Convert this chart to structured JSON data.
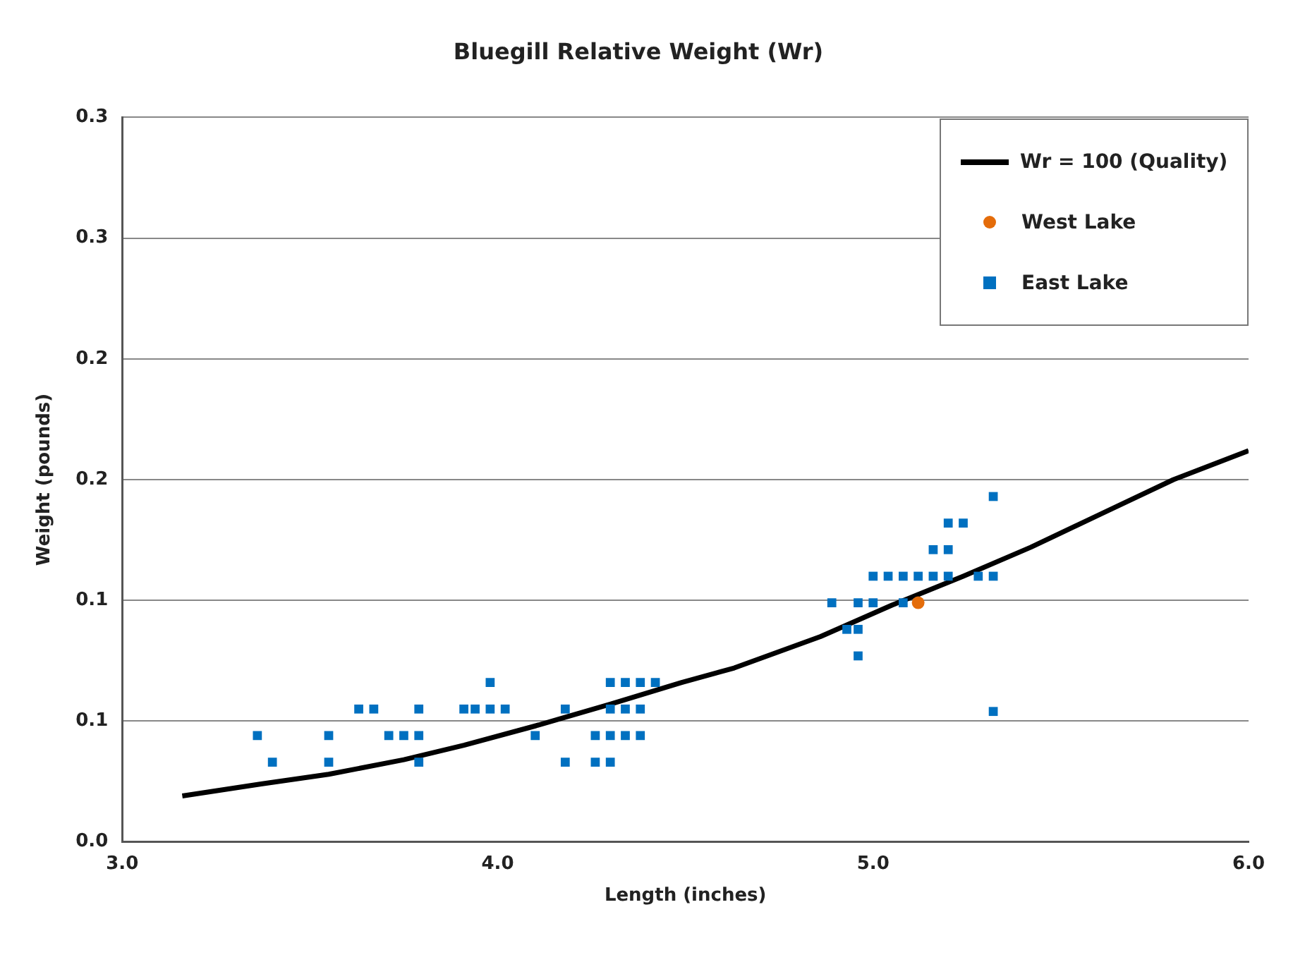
{
  "chart_data": {
    "type": "scatter",
    "title": "Bluegill Relative Weight (Wr)",
    "xlabel": "Length (inches)",
    "ylabel": "Weight (pounds)",
    "xlim": [
      3,
      6
    ],
    "xticks": [
      {
        "value": 3,
        "label": "3.0"
      },
      {
        "value": 4,
        "label": "4.0"
      },
      {
        "value": 5,
        "label": "5.0"
      },
      {
        "value": 6,
        "label": "6.0"
      }
    ],
    "ylim": [
      0,
      0.3
    ],
    "yticks": [
      {
        "value": 0,
        "label": "0.0"
      },
      {
        "value": 0.05,
        "label": "0.1"
      },
      {
        "value": 0.1,
        "label": "0.1"
      },
      {
        "value": 0.15,
        "label": "0.2"
      },
      {
        "value": 0.2,
        "label": "0.2"
      },
      {
        "value": 0.25,
        "label": "0.3"
      },
      {
        "value": 0.3,
        "label": "0.3"
      }
    ],
    "grid": "y",
    "legend": "top right",
    "series": [
      {
        "name": "Wr = 100 (Quality)",
        "type": "line",
        "marker": "none",
        "line_style": "solid",
        "color": "#000000",
        "x": [
          3.16,
          3.37,
          3.55,
          3.75,
          3.91,
          4.1,
          4.3,
          4.49,
          4.63,
          4.86,
          5.05,
          5.24,
          5.42,
          5.61,
          5.8,
          6.0
        ],
        "values": [
          0.019,
          0.024,
          0.028,
          0.034,
          0.04,
          0.048,
          0.057,
          0.066,
          0.072,
          0.085,
          0.098,
          0.11,
          0.122,
          0.136,
          0.15,
          0.162
        ]
      },
      {
        "name": "West Lake",
        "marker": "circle",
        "color": "#e46c0a",
        "x": [
          5.12
        ],
        "values": [
          0.099
        ]
      },
      {
        "name": "East Lake",
        "marker": "square",
        "color": "#0070c0",
        "x": [
          3.36,
          3.4,
          3.55,
          3.55,
          3.63,
          3.67,
          3.71,
          3.75,
          3.79,
          3.79,
          3.79,
          3.91,
          3.94,
          3.98,
          3.98,
          4.02,
          4.1,
          4.18,
          4.18,
          4.26,
          4.26,
          4.3,
          4.3,
          4.3,
          4.3,
          4.34,
          4.34,
          4.34,
          4.38,
          4.38,
          4.38,
          4.42,
          4.89,
          4.93,
          4.96,
          4.96,
          4.96,
          5.0,
          5.0,
          5.04,
          5.08,
          5.08,
          5.12,
          5.16,
          5.16,
          5.2,
          5.2,
          5.2,
          5.24,
          5.28,
          5.32,
          5.32,
          5.32
        ],
        "values": [
          0.044,
          0.033,
          0.044,
          0.033,
          0.055,
          0.055,
          0.044,
          0.044,
          0.055,
          0.044,
          0.033,
          0.055,
          0.055,
          0.066,
          0.055,
          0.055,
          0.044,
          0.055,
          0.033,
          0.044,
          0.033,
          0.066,
          0.055,
          0.044,
          0.033,
          0.066,
          0.055,
          0.044,
          0.066,
          0.055,
          0.044,
          0.066,
          0.099,
          0.088,
          0.099,
          0.088,
          0.077,
          0.11,
          0.099,
          0.11,
          0.11,
          0.099,
          0.11,
          0.121,
          0.11,
          0.132,
          0.121,
          0.11,
          0.132,
          0.11,
          0.143,
          0.11,
          0.054
        ]
      }
    ]
  }
}
